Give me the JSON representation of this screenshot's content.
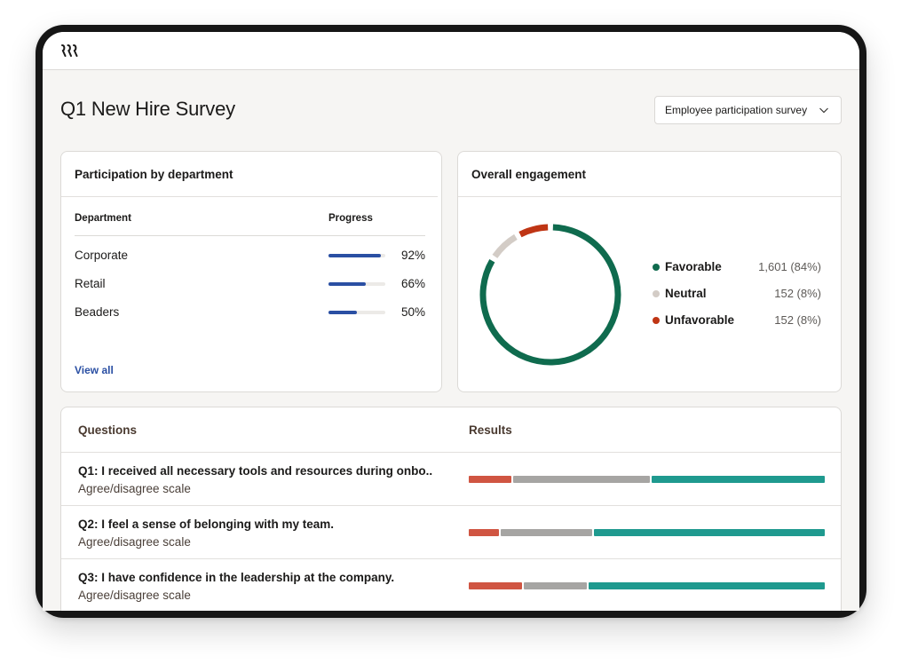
{
  "header": {
    "logo_icon": "rippling-logo-icon"
  },
  "page": {
    "title": "Q1 New Hire Survey",
    "survey_select": {
      "value": "Employee participation survey",
      "icon": "chevron-down-icon"
    }
  },
  "participation": {
    "title": "Participation by department",
    "columns": {
      "department": "Department",
      "progress": "Progress"
    },
    "rows": [
      {
        "name": "Corporate",
        "progress": 0.92,
        "label": "92%"
      },
      {
        "name": "Retail",
        "progress": 0.66,
        "label": "66%"
      },
      {
        "name": "Beaders",
        "progress": 0.5,
        "label": "50%"
      }
    ],
    "view_all": "View all",
    "bar_color": "#2a4fa3"
  },
  "engagement": {
    "title": "Overall engagement",
    "items": [
      {
        "label": "Favorable",
        "value": "1,601 (84%)",
        "share": 0.84,
        "color": "#0f6b4e"
      },
      {
        "label": "Neutral",
        "value": "152 (8%)",
        "share": 0.08,
        "color": "#d3ccc6"
      },
      {
        "label": "Unfavorable",
        "value": "152 (8%)",
        "share": 0.08,
        "color": "#bf3514"
      }
    ]
  },
  "questions": {
    "columns": {
      "questions": "Questions",
      "results": "Results"
    },
    "items": [
      {
        "text": "Q1: I received all necessary tools and resources during onbo...",
        "scale": "Agree/disagree scale",
        "results": {
          "unfavorable": 0.12,
          "neutral": 0.39,
          "favorable": 0.49
        }
      },
      {
        "text": "Q2: I feel a sense of belonging with my team.",
        "scale": "Agree/disagree scale",
        "results": {
          "unfavorable": 0.085,
          "neutral": 0.26,
          "favorable": 0.655
        }
      },
      {
        "text": "Q3: I have confidence in the leadership at the company.",
        "scale": "Agree/disagree scale",
        "results": {
          "unfavorable": 0.15,
          "neutral": 0.18,
          "favorable": 0.67
        }
      }
    ]
  }
}
